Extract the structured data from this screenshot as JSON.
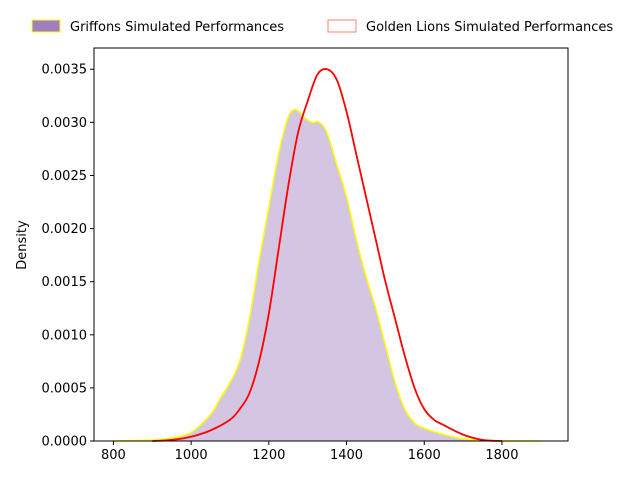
{
  "chart_data": {
    "type": "area",
    "title": "",
    "xlabel": "",
    "ylabel": "Density",
    "xlim": [
      750,
      1970
    ],
    "ylim": [
      0,
      0.0037
    ],
    "x_ticks": [
      800,
      1000,
      1200,
      1400,
      1600,
      1800
    ],
    "y_ticks": [
      0.0,
      0.0005,
      0.001,
      0.0015,
      0.002,
      0.0025,
      0.003,
      0.0035
    ],
    "y_tick_labels": [
      "0.0000",
      "0.0005",
      "0.0010",
      "0.0015",
      "0.0020",
      "0.0025",
      "0.0030",
      "0.0035"
    ],
    "legend_position": "top (above plot, horizontal)",
    "grid": false,
    "series": [
      {
        "name": "Griffons Simulated Performances",
        "style": "filled",
        "fill_color": "#9f7fc0",
        "edge_color": "#ffff00",
        "x": [
          800,
          900,
          950,
          1000,
          1050,
          1075,
          1100,
          1125,
          1150,
          1175,
          1200,
          1225,
          1250,
          1270,
          1290,
          1310,
          1330,
          1350,
          1375,
          1400,
          1425,
          1450,
          1475,
          1500,
          1525,
          1550,
          1575,
          1600,
          1650,
          1700,
          1750,
          1800,
          1850,
          1900
        ],
        "y": [
          0.0,
          1e-05,
          3e-05,
          8e-05,
          0.00025,
          0.0004,
          0.00055,
          0.00075,
          0.00115,
          0.0017,
          0.0022,
          0.0027,
          0.00305,
          0.00312,
          0.00305,
          0.003,
          0.003,
          0.0029,
          0.0026,
          0.0023,
          0.0019,
          0.00155,
          0.00125,
          0.0009,
          0.00055,
          0.0003,
          0.00017,
          0.00012,
          6e-05,
          2e-05,
          1e-05,
          0.0,
          0.0,
          0.0
        ]
      },
      {
        "name": "Golden Lions Simulated Performances",
        "style": "line",
        "line_color": "#ff0000",
        "legend_edge_color": "#fa8072",
        "x": [
          900,
          950,
          1000,
          1050,
          1100,
          1125,
          1150,
          1175,
          1200,
          1225,
          1250,
          1275,
          1300,
          1325,
          1350,
          1375,
          1400,
          1425,
          1450,
          1475,
          1500,
          1525,
          1550,
          1575,
          1600,
          1625,
          1650,
          1700,
          1750,
          1800
        ],
        "y": [
          0.0,
          1e-05,
          4e-05,
          0.0001,
          0.0002,
          0.0003,
          0.00045,
          0.00075,
          0.0012,
          0.0018,
          0.0024,
          0.0029,
          0.0032,
          0.00345,
          0.0035,
          0.0034,
          0.0031,
          0.0027,
          0.0023,
          0.0019,
          0.0015,
          0.00115,
          0.0008,
          0.0005,
          0.0003,
          0.0002,
          0.00015,
          6e-05,
          1e-05,
          0.0
        ]
      }
    ]
  }
}
